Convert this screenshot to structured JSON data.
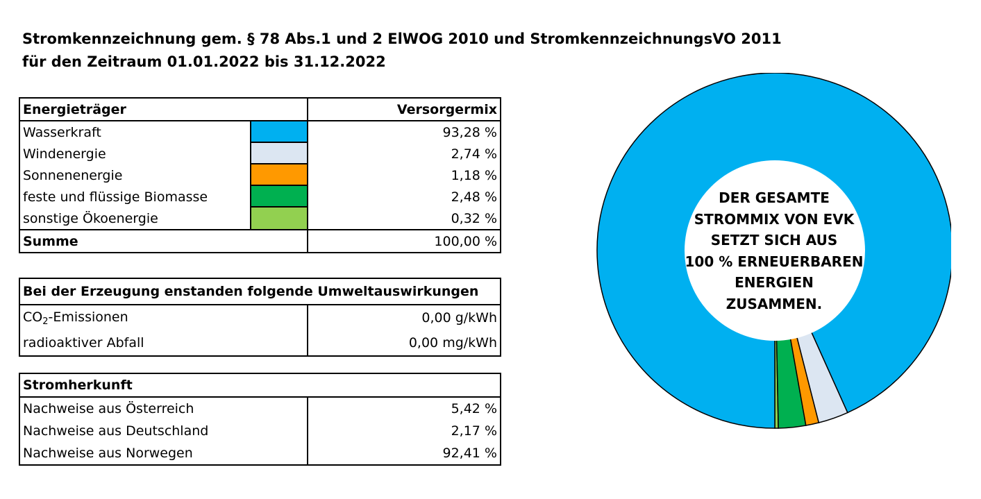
{
  "title": {
    "line1": "Stromkennzeichnung gem. § 78 Abs.1 und 2 ElWOG 2010 und StromkennzeichnungsVO 2011",
    "line2": "für den Zeitraum 01.01.2022 bis 31.12.2022"
  },
  "mix_table": {
    "header_left": "Energieträger",
    "header_right": "Versorgermix",
    "rows": [
      {
        "label": "Wasserkraft",
        "value": "93,28 %",
        "color": "#00B0F0"
      },
      {
        "label": "Windenergie",
        "value": "2,74 %",
        "color": "#DCE6F2"
      },
      {
        "label": "Sonnenenergie",
        "value": "1,18 %",
        "color": "#FF9900"
      },
      {
        "label": "feste und flüssige Biomasse",
        "value": "2,48 %",
        "color": "#00B050"
      },
      {
        "label": "sonstige Ökoenergie",
        "value": "0,32 %",
        "color": "#92D050"
      }
    ],
    "sum_label": "Summe",
    "sum_value": "100,00 %"
  },
  "environment_table": {
    "header": "Bei der Erzeugung enstanden folgende Umweltauswirkungen",
    "co2_prefix": "CO",
    "co2_sub": "2",
    "co2_suffix": "-Emissionen",
    "co2_value": "0,00 g/kWh",
    "waste_label": "radioaktiver Abfall",
    "waste_value": "0,00 mg/kWh"
  },
  "origin_table": {
    "header": "Stromherkunft",
    "rows": [
      {
        "label": "Nachweise aus Österreich",
        "value": "5,42 %"
      },
      {
        "label": "Nachweise aus Deutschland",
        "value": "2,17 %"
      },
      {
        "label": "Nachweise aus Norwegen",
        "value": "92,41 %"
      }
    ]
  },
  "donut_center_text": [
    "DER GESAMTE",
    "STROMMIX VON EVK",
    "SETZT SICH AUS",
    "100 % ERNEUERBAREN",
    "ENERGIEN",
    "ZUSAMMEN."
  ],
  "chart_data": {
    "type": "pie",
    "style": "donut",
    "start": "bottom",
    "direction": "clockwise",
    "categories": [
      "Wasserkraft",
      "Windenergie",
      "Sonnenenergie",
      "feste und flüssige Biomasse",
      "sonstige Ökoenergie"
    ],
    "values": [
      93.28,
      2.74,
      1.18,
      2.48,
      0.32
    ],
    "colors": [
      "#00B0F0",
      "#DCE6F2",
      "#FF9900",
      "#00B050",
      "#92D050"
    ],
    "legend": "none"
  }
}
